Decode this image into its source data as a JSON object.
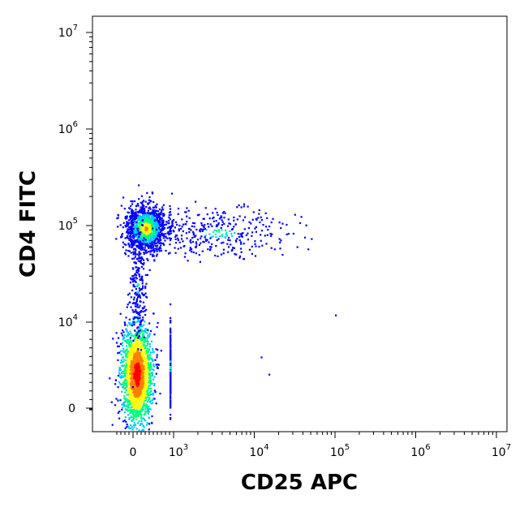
{
  "chart_data": {
    "type": "scatter",
    "title": "",
    "xlabel": "CD25 APC",
    "ylabel": "CD4 FITC",
    "x_scale": "biexponential",
    "y_scale": "biexponential",
    "xlim": [
      -500,
      10000000
    ],
    "ylim": [
      -300,
      10000000
    ],
    "x_ticks": [
      {
        "value": 0,
        "base": "0",
        "exp": ""
      },
      {
        "value": 1000,
        "base": "10",
        "exp": "3"
      },
      {
        "value": 10000,
        "base": "10",
        "exp": "4"
      },
      {
        "value": 100000,
        "base": "10",
        "exp": "5"
      },
      {
        "value": 1000000,
        "base": "10",
        "exp": "6"
      },
      {
        "value": 10000000,
        "base": "10",
        "exp": "7"
      }
    ],
    "y_ticks": [
      {
        "value": 0,
        "base": "0",
        "exp": ""
      },
      {
        "value": 10000,
        "base": "10",
        "exp": "4"
      },
      {
        "value": 100000,
        "base": "10",
        "exp": "5"
      },
      {
        "value": 1000000,
        "base": "10",
        "exp": "6"
      },
      {
        "value": 10000000,
        "base": "10",
        "exp": "7"
      }
    ],
    "color_scale": [
      "#0000ff",
      "#00c8ff",
      "#00ff80",
      "#ffff00",
      "#ff8000",
      "#ff0000"
    ],
    "populations": [
      {
        "center": [
          80,
          4000
        ],
        "spread": [
          180,
          0.45
        ],
        "count": 2200,
        "peak_density": 1.0
      },
      {
        "center": [
          300,
          95000
        ],
        "spread": [
          250,
          0.12
        ],
        "count": 1300,
        "peak_density": 0.55
      },
      {
        "center": [
          3500,
          85000
        ],
        "spread": [
          0.45,
          0.12
        ],
        "count": 350,
        "peak_density": 0.15
      },
      {
        "center": [
          100,
          25000
        ],
        "spread": [
          100,
          0.35
        ],
        "count": 220,
        "peak_density": 0.08
      },
      {
        "center": [
          900,
          5000
        ],
        "spread": [
          0.45,
          0.35
        ],
        "count": 200,
        "peak_density": 0.1
      }
    ],
    "outliers": [
      [
        100000,
        12000
      ],
      [
        15000,
        4000
      ],
      [
        12000,
        6000
      ],
      [
        15000,
        100000
      ],
      [
        20000,
        110000
      ]
    ],
    "grid": false,
    "legend": "none"
  }
}
